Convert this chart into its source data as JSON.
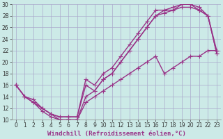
{
  "xlabel": "Windchill (Refroidissement éolien,°C)",
  "xlim": [
    -0.5,
    23.5
  ],
  "ylim": [
    10,
    30
  ],
  "xticks": [
    0,
    1,
    2,
    3,
    4,
    5,
    6,
    7,
    8,
    9,
    10,
    11,
    12,
    13,
    14,
    15,
    16,
    17,
    18,
    19,
    20,
    21,
    22,
    23
  ],
  "yticks": [
    10,
    12,
    14,
    16,
    18,
    20,
    22,
    24,
    26,
    28,
    30
  ],
  "bg_color": "#cceae7",
  "grid_color": "#aaaacc",
  "line_color": "#993388",
  "line_width": 1.0,
  "marker": "+",
  "marker_size": 4,
  "lines": [
    {
      "x": [
        0,
        1,
        2,
        3,
        4,
        5,
        6,
        7,
        8,
        9,
        10,
        11,
        12,
        13,
        14,
        15,
        16,
        17,
        18,
        19,
        20,
        21,
        22,
        23
      ],
      "y": [
        16,
        14,
        13,
        12,
        11,
        10.5,
        10.5,
        10.5,
        17,
        16,
        18,
        19,
        21,
        23,
        25,
        27,
        29,
        29,
        29.5,
        30,
        30,
        29.5,
        28,
        22
      ]
    },
    {
      "x": [
        0,
        1,
        2,
        3,
        4,
        5,
        6,
        7,
        8,
        9,
        10,
        11,
        12,
        13,
        14,
        15,
        16,
        17,
        18,
        19,
        20,
        21,
        22,
        23
      ],
      "y": [
        16,
        14,
        13,
        12,
        11,
        10.5,
        10.5,
        10.5,
        16,
        15,
        17,
        18,
        20,
        22,
        24,
        26,
        28,
        29,
        29,
        30,
        30,
        29,
        28,
        21.5
      ]
    },
    {
      "x": [
        0,
        1,
        2,
        3,
        4,
        5,
        6,
        7,
        8,
        9,
        10,
        11,
        12,
        13,
        14,
        15,
        16,
        17,
        18,
        19,
        20,
        21,
        22,
        23
      ],
      "y": [
        16,
        14,
        13,
        11.5,
        10.5,
        10,
        10,
        10,
        14,
        15,
        17,
        18,
        20,
        22,
        24,
        26,
        28,
        28.5,
        29,
        29.5,
        29.5,
        29,
        28,
        21.5
      ]
    },
    {
      "x": [
        0,
        1,
        2,
        3,
        4,
        5,
        6,
        7,
        8,
        9,
        10,
        11,
        12,
        13,
        14,
        15,
        16,
        17,
        18,
        19,
        20,
        21,
        22,
        23
      ],
      "y": [
        16,
        14,
        13.5,
        12,
        11,
        10,
        10,
        10,
        13,
        14,
        15,
        16,
        17,
        18,
        19,
        20,
        21,
        18,
        19,
        20,
        21,
        21,
        22,
        22
      ]
    }
  ],
  "tick_fontsize": 5.5,
  "xlabel_fontsize": 6.5
}
